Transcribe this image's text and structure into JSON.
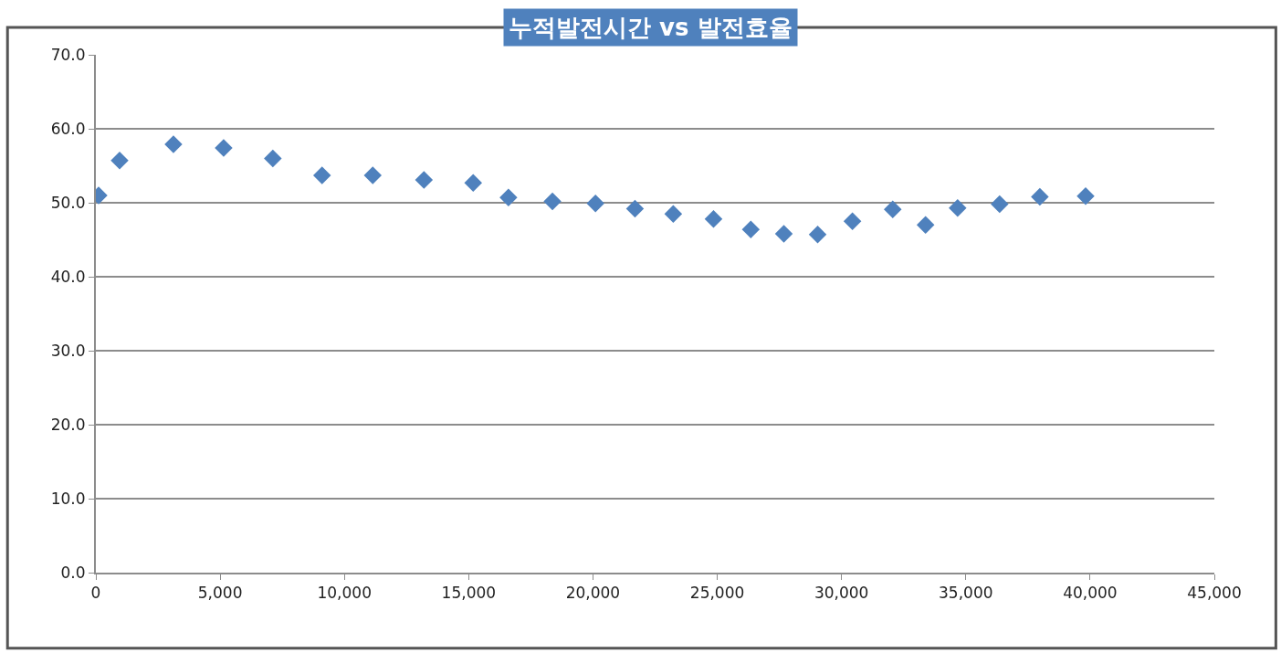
{
  "chart_data": {
    "type": "scatter",
    "title": "누적발전시간 vs 발전효율",
    "x": [
      110,
      955,
      3120,
      5140,
      7120,
      9100,
      11140,
      13200,
      15180,
      16600,
      18370,
      20100,
      21690,
      23230,
      24850,
      26350,
      27680,
      29040,
      30440,
      32060,
      33380,
      34670,
      36360,
      37980,
      39820
    ],
    "values": [
      51.0,
      55.7,
      57.9,
      57.4,
      56.0,
      53.7,
      53.7,
      53.1,
      52.7,
      50.7,
      50.2,
      49.9,
      49.2,
      48.5,
      47.8,
      46.4,
      45.8,
      45.7,
      47.5,
      49.1,
      47.0,
      49.3,
      49.8,
      50.8,
      50.9
    ],
    "color": "#4f81bd",
    "marker": "diamond",
    "grid": "y",
    "legend": false,
    "xlim": [
      0,
      45000
    ],
    "xticks": [
      0,
      {
        "value": 5000,
        "label": "5,000"
      },
      {
        "value": 10000,
        "label": "10,000"
      },
      {
        "value": 15000,
        "label": "15,000"
      },
      {
        "value": 20000,
        "label": "20,000"
      },
      {
        "value": 25000,
        "label": "25,000"
      },
      {
        "value": 30000,
        "label": "30,000"
      },
      {
        "value": 35000,
        "label": "35,000"
      },
      {
        "value": 40000,
        "label": "40,000"
      },
      {
        "value": 45000,
        "label": "45,000"
      }
    ],
    "ylim": [
      0,
      70
    ],
    "yticks": [
      {
        "value": 0,
        "label": "0.0"
      },
      {
        "value": 10,
        "label": "10.0"
      },
      {
        "value": 20,
        "label": "20.0"
      },
      {
        "value": 30,
        "label": "30.0"
      },
      {
        "value": 40,
        "label": "40.0"
      },
      {
        "value": 50,
        "label": "50.0"
      },
      {
        "value": 60,
        "label": "60.0"
      },
      {
        "value": 70,
        "label": "70.0"
      }
    ]
  }
}
